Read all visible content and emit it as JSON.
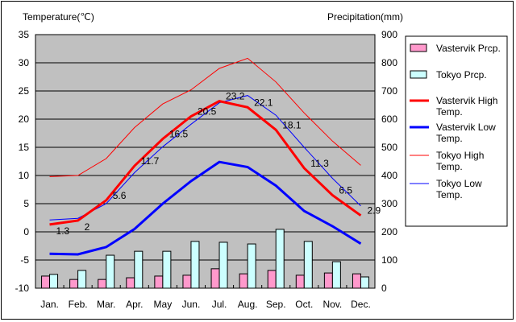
{
  "chart_data": {
    "type": "line",
    "ylabel_left": "Temperature(℃)",
    "ylabel_right": "Precipitation(mm)",
    "ylim_left": [
      -10,
      35
    ],
    "ylim_right": [
      0,
      900
    ],
    "yticks_left": [
      35,
      30,
      25,
      20,
      15,
      10,
      5,
      0,
      -5,
      -10
    ],
    "yticks_right": [
      900,
      800,
      700,
      600,
      500,
      400,
      300,
      200,
      100,
      0
    ],
    "categories": [
      "Jan.",
      "Feb.",
      "Mar.",
      "Apr.",
      "May",
      "Jun.",
      "Jul.",
      "Aug.",
      "Sep.",
      "Oct.",
      "Nov.",
      "Dec."
    ],
    "grid": true,
    "legend_position": "right",
    "bars": [
      {
        "name": "Vastervik Prcp.",
        "color": "#ff99cc",
        "values": [
          43,
          31,
          31,
          37,
          43,
          46,
          69,
          51,
          63,
          46,
          54,
          51
        ]
      },
      {
        "name": "Tokyo Prcp.",
        "color": "#ccffff",
        "values": [
          49,
          63,
          117,
          131,
          131,
          166,
          163,
          157,
          209,
          166,
          94,
          40
        ]
      }
    ],
    "series": [
      {
        "name": "Vastervik High Temp.",
        "color": "#ff0000",
        "width": 3,
        "values": [
          1.3,
          2,
          5.6,
          11.7,
          16.5,
          20.5,
          23.2,
          22.1,
          18.1,
          11.3,
          6.5,
          2.9
        ],
        "labels": [
          "1.3",
          "2",
          "5.6",
          "11.7",
          "16.5",
          "20.5",
          "23.2",
          "22.1",
          "18.1",
          "11.3",
          "6.5",
          "2.9"
        ]
      },
      {
        "name": "Vastervik Low Temp.",
        "color": "#0000ff",
        "width": 3,
        "values": [
          -3.9,
          -4.0,
          -2.7,
          0.5,
          5,
          9,
          12.4,
          11.5,
          8.2,
          3.7,
          1.0,
          -2.1
        ]
      },
      {
        "name": "Tokyo High Temp.",
        "color": "#ff0000",
        "width": 1,
        "values": [
          9.8,
          10,
          13,
          18.5,
          22.7,
          25.2,
          29,
          30.8,
          26.6,
          21.1,
          16.1,
          11.8
        ]
      },
      {
        "name": "Tokyo Low Temp.",
        "color": "#0000ff",
        "width": 1,
        "values": [
          2.1,
          2.4,
          5,
          10.5,
          15.1,
          19.1,
          22.9,
          24.2,
          20.7,
          15,
          9.5,
          4.6
        ]
      }
    ]
  }
}
